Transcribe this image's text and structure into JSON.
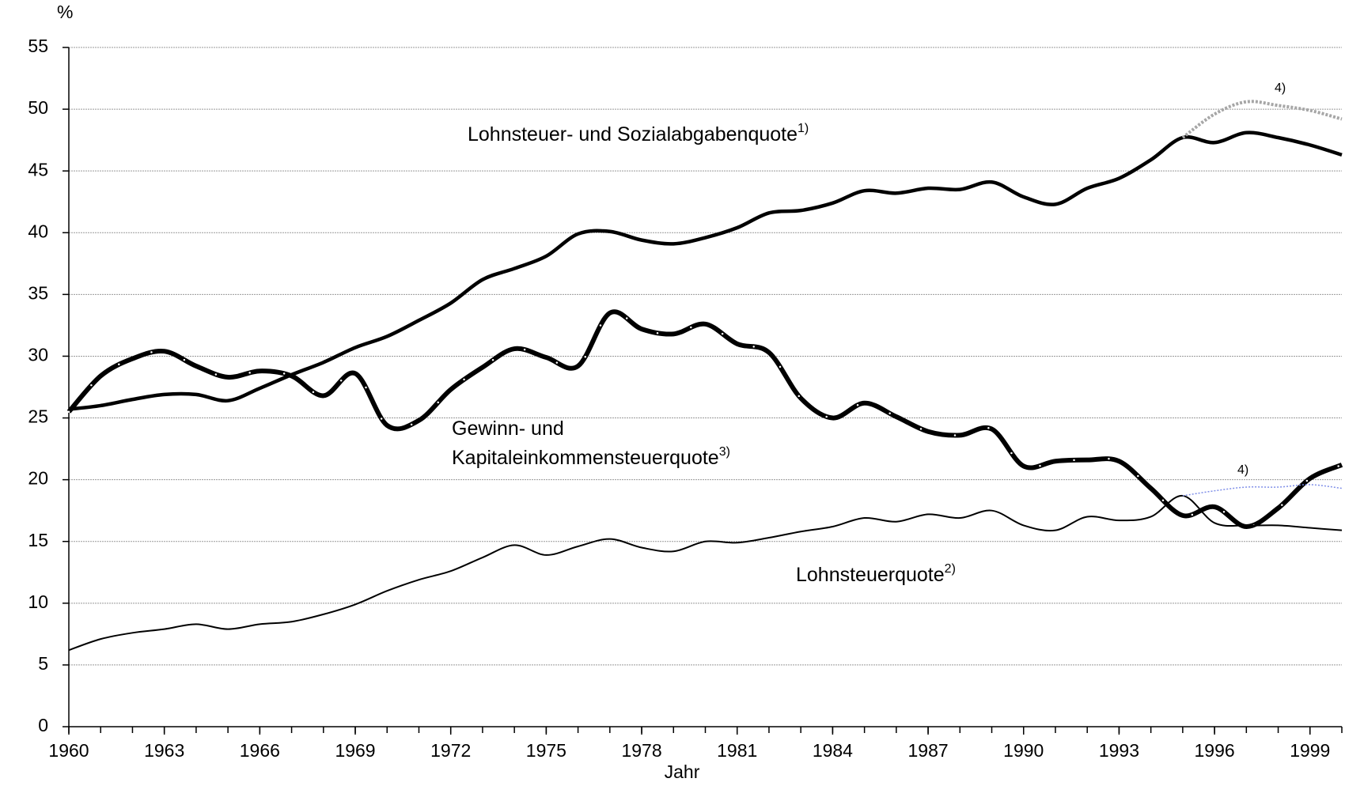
{
  "chart_data": {
    "type": "line",
    "y_unit": "%",
    "x_label": "Jahr",
    "xlim": [
      1960,
      2000
    ],
    "xticks": [
      1960,
      1963,
      1966,
      1969,
      1972,
      1975,
      1978,
      1981,
      1984,
      1987,
      1990,
      1993,
      1996,
      1999
    ],
    "ylim": [
      0,
      55
    ],
    "yticks": [
      0,
      5,
      10,
      15,
      20,
      25,
      30,
      35,
      40,
      45,
      50,
      55
    ],
    "grid": true,
    "x": [
      1960,
      1961,
      1962,
      1963,
      1964,
      1965,
      1966,
      1967,
      1968,
      1969,
      1970,
      1971,
      1972,
      1973,
      1974,
      1975,
      1976,
      1977,
      1978,
      1979,
      1980,
      1981,
      1982,
      1983,
      1984,
      1985,
      1986,
      1987,
      1988,
      1989,
      1990,
      1991,
      1992,
      1993,
      1994,
      1995,
      1996,
      1997,
      1998,
      1999,
      2000
    ],
    "series": [
      {
        "name": "Lohnsteuer- und Sozialabgabenquote",
        "color": "#000000",
        "width": 4.5,
        "dots": false,
        "values": [
          25.7,
          26.0,
          26.5,
          26.9,
          26.9,
          26.4,
          27.4,
          28.5,
          29.5,
          30.7,
          31.6,
          32.9,
          34.3,
          36.2,
          37.1,
          38.1,
          39.9,
          40.1,
          39.4,
          39.1,
          39.6,
          40.4,
          41.6,
          41.8,
          42.4,
          43.4,
          43.2,
          43.6,
          43.5,
          44.1,
          42.9,
          42.3,
          43.6,
          44.4,
          45.9,
          47.7,
          47.3,
          48.1,
          47.7,
          47.1,
          46.3
        ]
      },
      {
        "name": "Gewinn- und Kapitaleinkommensteuerquote",
        "color": "#000000",
        "width": 6,
        "dots": true,
        "values": [
          25.5,
          28.4,
          29.8,
          30.4,
          29.2,
          28.3,
          28.8,
          28.4,
          26.8,
          28.6,
          24.4,
          24.8,
          27.3,
          29.1,
          30.6,
          29.9,
          29.2,
          33.5,
          32.2,
          31.8,
          32.6,
          31.0,
          30.3,
          26.6,
          25.0,
          26.2,
          25.1,
          23.9,
          23.6,
          24.1,
          21.1,
          21.5,
          21.6,
          21.5,
          19.3,
          17.1,
          17.8,
          16.2,
          17.7,
          20.1,
          21.2
        ]
      },
      {
        "name": "Lohnsteuerquote",
        "color": "#000000",
        "width": 2,
        "dots": false,
        "values": [
          6.2,
          7.1,
          7.6,
          7.9,
          8.3,
          7.9,
          8.3,
          8.5,
          9.1,
          9.9,
          11.0,
          11.9,
          12.6,
          13.7,
          14.7,
          13.9,
          14.6,
          15.2,
          14.5,
          14.2,
          15.0,
          14.9,
          15.3,
          15.8,
          16.2,
          16.9,
          16.6,
          17.2,
          16.9,
          17.5,
          16.3,
          15.9,
          17.0,
          16.7,
          17.0,
          18.7,
          16.5,
          16.3,
          16.3,
          16.1,
          15.9
        ]
      },
      {
        "name": "4)",
        "color": "#a6a6a6",
        "width": 4,
        "dots": false,
        "dash": "3 2",
        "values": [
          null,
          null,
          null,
          null,
          null,
          null,
          null,
          null,
          null,
          null,
          null,
          null,
          null,
          null,
          null,
          null,
          null,
          null,
          null,
          null,
          null,
          null,
          null,
          null,
          null,
          null,
          null,
          null,
          null,
          null,
          null,
          null,
          null,
          null,
          null,
          47.7,
          49.6,
          50.6,
          50.3,
          49.9,
          49.2
        ]
      },
      {
        "name": "4)",
        "color": "#7f8fe8",
        "width": 1.5,
        "dots": false,
        "dash": "2 2",
        "values": [
          null,
          null,
          null,
          null,
          null,
          null,
          null,
          null,
          null,
          null,
          null,
          null,
          null,
          null,
          null,
          null,
          null,
          null,
          null,
          null,
          null,
          null,
          null,
          null,
          null,
          null,
          null,
          null,
          null,
          null,
          null,
          null,
          null,
          null,
          null,
          18.7,
          19.1,
          19.4,
          19.4,
          19.6,
          19.3
        ]
      }
    ],
    "annotations": [
      {
        "lines": [
          "Lohnsteuer- und Sozialabgabenquote"
        ],
        "note": "1)"
      },
      {
        "lines": [
          "Gewinn- und",
          "Kapitaleinkommensteuerquote"
        ],
        "note": "3)"
      },
      {
        "lines": [
          "Lohnsteuerquote"
        ],
        "note": "2)"
      },
      {
        "lines": [
          "4)"
        ]
      },
      {
        "lines": [
          "4)"
        ]
      }
    ]
  }
}
